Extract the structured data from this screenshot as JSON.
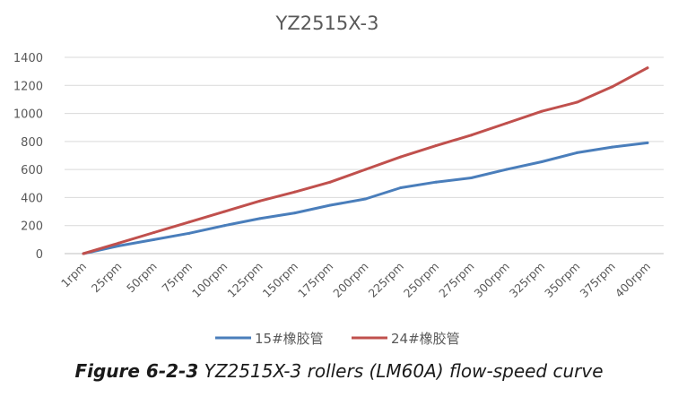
{
  "chart_data": {
    "type": "line",
    "title": "YZ2515X-3",
    "categories": [
      "1rpm",
      "25rpm",
      "50rpm",
      "75rpm",
      "100rpm",
      "125rpm",
      "150rpm",
      "175rpm",
      "200rpm",
      "225rpm",
      "250rpm",
      "275rpm",
      "300rpm",
      "325rpm",
      "350rpm",
      "375rpm",
      "400rpm"
    ],
    "series": [
      {
        "name": "15#橡胶管",
        "color": "#4a7ebb",
        "values": [
          0,
          55,
          100,
          145,
          200,
          250,
          290,
          345,
          390,
          470,
          510,
          540,
          600,
          655,
          720,
          760,
          790
        ]
      },
      {
        "name": "24#橡胶管",
        "color": "#c0504d",
        "values": [
          0,
          75,
          150,
          225,
          300,
          375,
          440,
          510,
          600,
          690,
          770,
          845,
          930,
          1015,
          1080,
          1190,
          1325
        ]
      }
    ],
    "yticks": [
      0,
      200,
      400,
      600,
      800,
      1000,
      1200,
      1400
    ],
    "ylim": [
      0,
      1400
    ],
    "xlabel": "",
    "ylabel": "",
    "grid": true,
    "legend": "bottom"
  },
  "caption": {
    "label": "Figure 6-2-3",
    "text": "YZ2515X-3 rollers (LM60A) flow-speed curve"
  }
}
